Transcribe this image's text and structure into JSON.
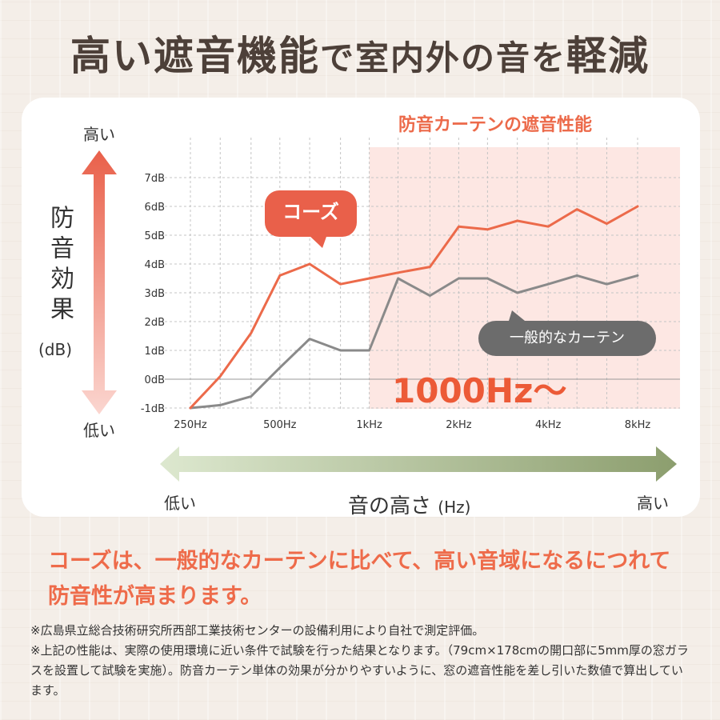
{
  "headline": {
    "part1": "高い遮音機能",
    "part2": "で室内外の音を",
    "part3": "軽減"
  },
  "labels": {
    "y_high": "高い",
    "y_low": "低い",
    "y_title": "防音効果",
    "y_unit": "(dB)",
    "x_low": "低い",
    "x_high": "高い",
    "x_title": "音の高さ",
    "x_unit": "(Hz)"
  },
  "callouts": {
    "koz": "コーズ",
    "generic": "一般的なカーテン",
    "freq_region": "1000Hz〜"
  },
  "colors": {
    "koz_line": "#ec6a4a",
    "generic_line": "#8a8a8a",
    "highlight_region": "#fde7e3",
    "arrow_top": "#e9604a",
    "arrow_bottom": "#fbd6d0",
    "x_arrow_left": "#dde8cf",
    "x_arrow_right": "#8c9e6e"
  },
  "chart_data": {
    "type": "line",
    "title": "防音カーテンの遮音性能",
    "x": [
      250,
      315,
      400,
      500,
      630,
      800,
      1000,
      1250,
      1600,
      2000,
      2500,
      3150,
      4000,
      5000,
      6300,
      8000
    ],
    "x_ticks": [
      "250Hz",
      "500Hz",
      "1kHz",
      "2kHz",
      "4kHz",
      "8kHz"
    ],
    "y_ticks": [
      "7dB",
      "6dB",
      "5dB",
      "4dB",
      "3dB",
      "2dB",
      "1dB",
      "0dB",
      "-1dB"
    ],
    "ylim": [
      -1,
      7
    ],
    "series": [
      {
        "name": "コーズ",
        "values": [
          -1.0,
          0.1,
          1.6,
          3.6,
          4.0,
          3.3,
          3.5,
          3.7,
          3.9,
          5.3,
          5.2,
          5.5,
          5.3,
          5.9,
          5.4,
          6.0
        ]
      },
      {
        "name": "一般的なカーテン",
        "values": [
          -1.0,
          -0.9,
          -0.6,
          0.4,
          1.4,
          1.0,
          1.0,
          3.5,
          2.9,
          3.5,
          3.5,
          3.0,
          3.3,
          3.6,
          3.3,
          3.6
        ]
      }
    ],
    "highlight_from": 1000,
    "grid": true,
    "legend": "callouts on lines"
  },
  "summary": "コーズは、一般的なカーテンに比べて、高い音域になるにつれて防音性が高まります。",
  "notes": [
    "※広島県立総合技術研究所西部工業技術センターの設備利用により自社で測定評価。",
    "※上記の性能は、実際の使用環境に近い条件で試験を行った結果となります。（79cm×178cmの開口部に5mm厚の窓ガラスを設置して試験を実施）。防音カーテン単体の効果が分かりやすいように、窓の遮音性能を差し引いた数値で算出しています。"
  ]
}
